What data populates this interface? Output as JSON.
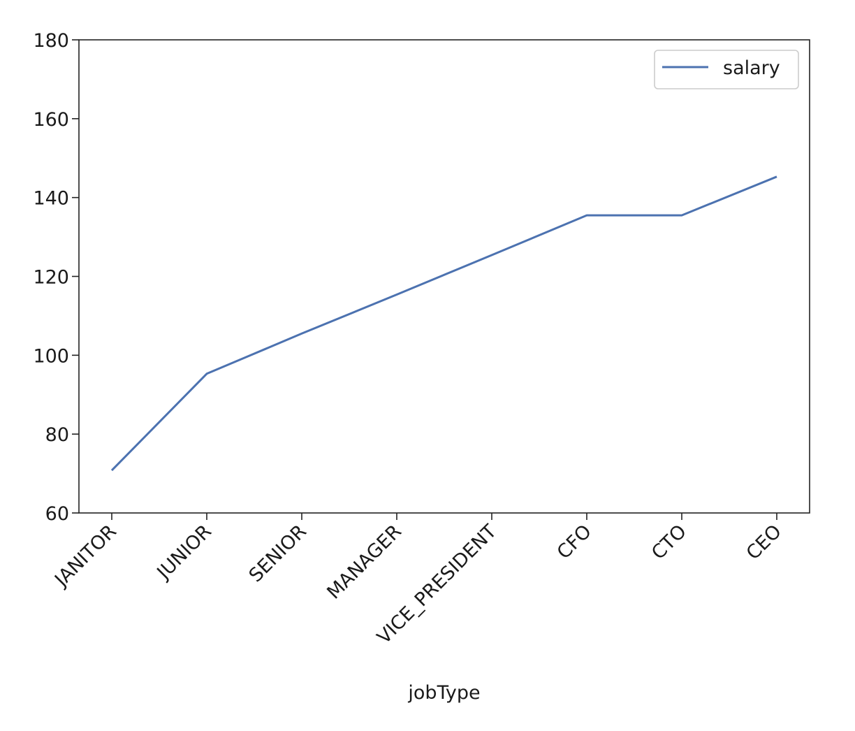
{
  "chart_data": {
    "type": "line",
    "categories": [
      "JANITOR",
      "JUNIOR",
      "SENIOR",
      "MANAGER",
      "VICE_PRESIDENT",
      "CFO",
      "CTO",
      "CEO"
    ],
    "series": [
      {
        "name": "salary",
        "values": [
          70.8,
          95.3,
          105.5,
          115.4,
          125.4,
          135.5,
          135.5,
          145.3
        ],
        "color": "#4c72b0"
      }
    ],
    "xlabel": "jobType",
    "ylabel": "",
    "ylim": [
      60,
      180
    ],
    "yticks": [
      60,
      80,
      100,
      120,
      140,
      160,
      180
    ],
    "grid": false,
    "legend_position": "top-right"
  }
}
